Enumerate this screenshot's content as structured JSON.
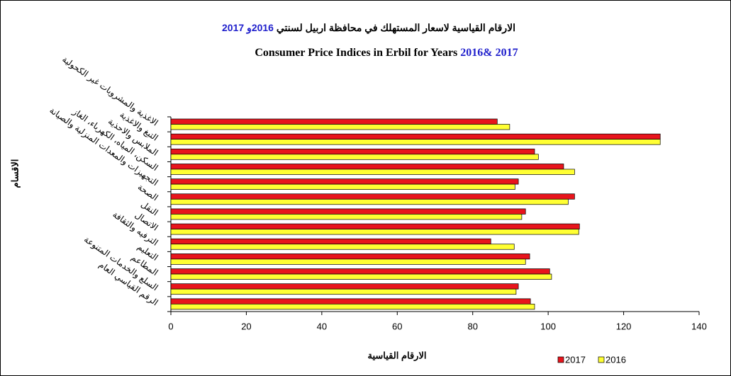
{
  "chart_data": {
    "type": "hbar",
    "title_ar_parts": [
      {
        "text": "الارقام القياسية لاسعار المستهلك في محافظة اربيل لسنتي ",
        "color": "#000000"
      },
      {
        "text": "2016و 2017",
        "color": "#1f1fcc"
      }
    ],
    "title_parts": [
      {
        "text": "Consumer Price Indices in Erbil for Years ",
        "color": "#000000"
      },
      {
        "text": "2016& 2017",
        "color": "#1f1fcc"
      }
    ],
    "xlabel": "الارقام القياسية",
    "ylabel": "الاقسام",
    "categories": [
      "الاغذية والمشروبات غير الكحولية",
      "التبغ والاغذية",
      "الملابس والاحذية",
      "السكن، المياه، الكهرباء، الغاز",
      "التجهيزات والمعدات المنزلية والصيانة",
      "الصحة",
      "النقل",
      "الاتصال",
      "الترفيه والثقافة",
      "التعليم",
      "المطاعم",
      "السلع والخدمات المتنوعة",
      "الرقم القياسي العام"
    ],
    "series": [
      {
        "name": "2017",
        "color": "#e8141c",
        "values": [
          86.5,
          129.7,
          96.4,
          104.1,
          92.1,
          107,
          94,
          108.3,
          84.8,
          95.1,
          100.4,
          92.1,
          95.3
        ]
      },
      {
        "name": "2016",
        "color": "#ffff33",
        "values": [
          89.8,
          129.7,
          97.4,
          107,
          91.2,
          105.3,
          93,
          108.1,
          91,
          94,
          100.9,
          91.5,
          96.4
        ]
      }
    ],
    "xlim": [
      0,
      140
    ],
    "xticks": [
      0,
      20,
      40,
      60,
      80,
      100,
      120,
      140
    ],
    "grid": false,
    "legend": "bottom-right"
  }
}
